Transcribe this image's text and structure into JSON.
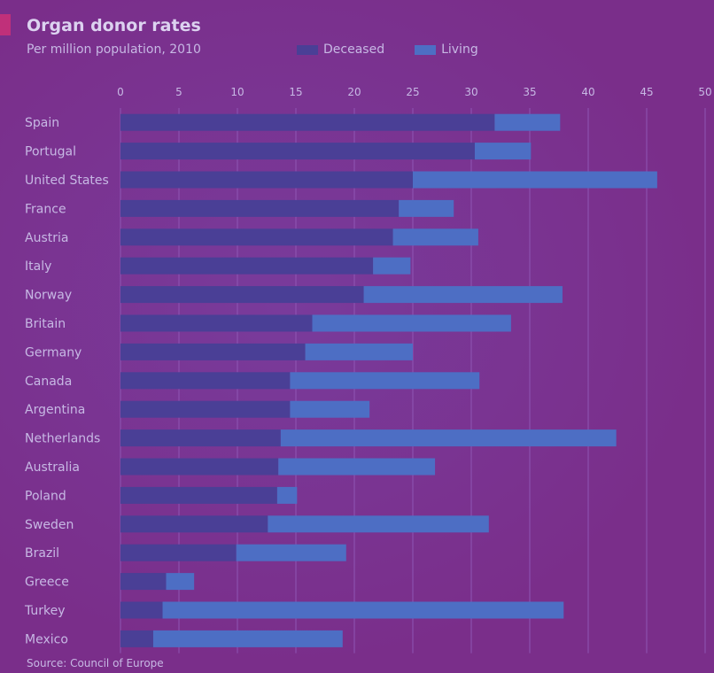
{
  "title": "Organ donor rates",
  "subtitle": "Per million population, 2010",
  "source": "Source: Council of Europe",
  "legend": {
    "deceased": "Deceased",
    "living": "Living"
  },
  "colors": {
    "deceased": "#4a3f96",
    "living": "#4d6ec4",
    "grid": "#8f56b4",
    "background": "#7a2e8a"
  },
  "chart_data": {
    "type": "bar",
    "orientation": "horizontal",
    "stacked": true,
    "title": "Organ donor rates",
    "subtitle": "Per million population, 2010",
    "xlim": [
      0,
      50
    ],
    "xticks": [
      0,
      5,
      10,
      15,
      20,
      25,
      30,
      35,
      40,
      45,
      50
    ],
    "categories": [
      "Spain",
      "Portugal",
      "United States",
      "France",
      "Austria",
      "Italy",
      "Norway",
      "Britain",
      "Germany",
      "Canada",
      "Argentina",
      "Netherlands",
      "Australia",
      "Poland",
      "Sweden",
      "Brazil",
      "Greece",
      "Turkey",
      "Mexico"
    ],
    "series": [
      {
        "name": "Deceased",
        "values": [
          32.0,
          30.3,
          25.0,
          23.8,
          23.3,
          21.6,
          20.8,
          16.4,
          15.8,
          14.5,
          14.5,
          13.7,
          13.5,
          13.4,
          12.6,
          9.9,
          3.9,
          3.6,
          2.8
        ]
      },
      {
        "name": "Living",
        "values": [
          5.6,
          4.8,
          20.9,
          4.7,
          7.3,
          3.2,
          17.0,
          17.0,
          9.2,
          16.2,
          6.8,
          28.7,
          13.4,
          1.7,
          18.9,
          9.4,
          2.4,
          34.3,
          16.2
        ]
      }
    ],
    "grid": true,
    "legend_position": "top"
  }
}
